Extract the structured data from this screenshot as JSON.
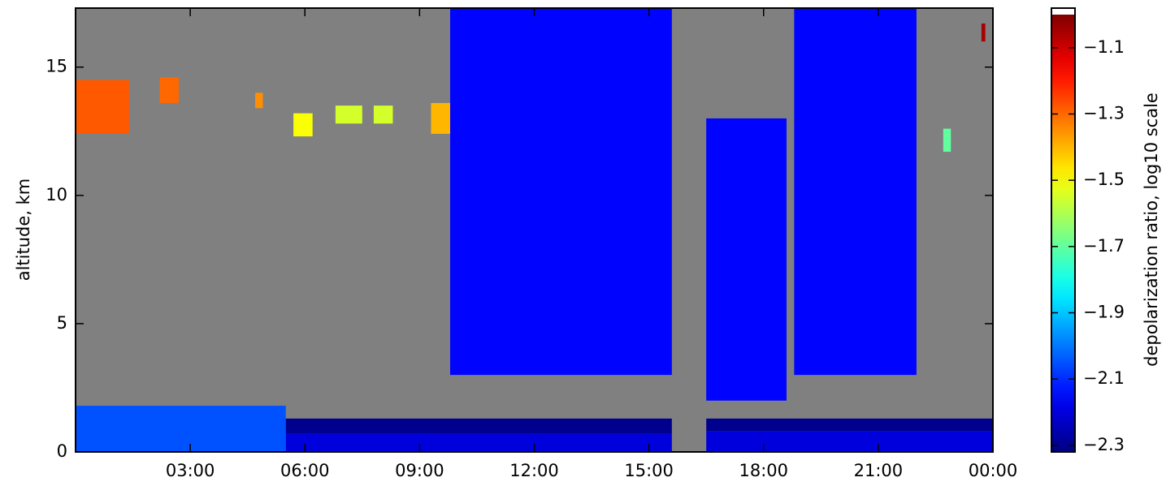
{
  "chart_data": {
    "type": "heatmap",
    "ylabel": "altitude, km",
    "colorbar_label": "depolarization ratio, log10 scale",
    "xlim": [
      0,
      24
    ],
    "xticks": [
      {
        "value": 3,
        "label": "03:00"
      },
      {
        "value": 6,
        "label": "06:00"
      },
      {
        "value": 9,
        "label": "09:00"
      },
      {
        "value": 12,
        "label": "12:00"
      },
      {
        "value": 15,
        "label": "15:00"
      },
      {
        "value": 18,
        "label": "18:00"
      },
      {
        "value": 21,
        "label": "21:00"
      },
      {
        "value": 24,
        "label": "00:00"
      }
    ],
    "ylim": [
      0,
      17.3
    ],
    "yticks": [
      0,
      5,
      10,
      15
    ],
    "clim": [
      -2.32,
      -1.0
    ],
    "cticks": [
      {
        "value": -1.1,
        "label": "−1.1"
      },
      {
        "value": -1.3,
        "label": "−1.3"
      },
      {
        "value": -1.5,
        "label": "−1.5"
      },
      {
        "value": -1.7,
        "label": "−1.7"
      },
      {
        "value": -1.9,
        "label": "−1.9"
      },
      {
        "value": -2.1,
        "label": "−2.1"
      },
      {
        "value": -2.3,
        "label": "−2.3"
      }
    ],
    "colormap": "jet",
    "background": "#808080",
    "cells": [
      {
        "x0": 0,
        "x1": 1.4,
        "y0": 12.4,
        "y1": 14.5,
        "value": -1.28
      },
      {
        "x0": 2.2,
        "x1": 2.7,
        "y0": 13.6,
        "y1": 14.6,
        "value": -1.3
      },
      {
        "x0": 4.7,
        "x1": 4.9,
        "y0": 13.4,
        "y1": 14.0,
        "value": -1.35
      },
      {
        "x0": 5.7,
        "x1": 6.2,
        "y0": 12.3,
        "y1": 13.2,
        "value": -1.5
      },
      {
        "x0": 6.8,
        "x1": 7.5,
        "y0": 12.8,
        "y1": 13.5,
        "value": -1.55
      },
      {
        "x0": 7.8,
        "x1": 8.3,
        "y0": 12.8,
        "y1": 13.5,
        "value": -1.55
      },
      {
        "x0": 9.3,
        "x1": 9.8,
        "y0": 12.4,
        "y1": 13.6,
        "value": -1.4
      },
      {
        "x0": 9.8,
        "x1": 15.6,
        "y0": 3.0,
        "y1": 17.3,
        "value": -2.15
      },
      {
        "x0": 16.5,
        "x1": 18.6,
        "y0": 2.0,
        "y1": 13.0,
        "value": -2.15
      },
      {
        "x0": 18.8,
        "x1": 22.0,
        "y0": 3.0,
        "y1": 17.3,
        "value": -2.15
      },
      {
        "x0": 0,
        "x1": 5.5,
        "y0": 0,
        "y1": 1.8,
        "value": -2.05
      },
      {
        "x0": 5.5,
        "x1": 15.6,
        "y0": 0.7,
        "y1": 1.3,
        "value": -2.3
      },
      {
        "x0": 16.5,
        "x1": 24,
        "y0": 0.8,
        "y1": 1.3,
        "value": -2.3
      },
      {
        "x0": 5.5,
        "x1": 15.6,
        "y0": 0,
        "y1": 0.7,
        "value": -2.2
      },
      {
        "x0": 16.5,
        "x1": 24,
        "y0": 0,
        "y1": 0.8,
        "value": -2.2
      },
      {
        "x0": 22.7,
        "x1": 22.9,
        "y0": 11.7,
        "y1": 12.6,
        "value": -1.7
      },
      {
        "x0": 23.7,
        "x1": 23.8,
        "y0": 16.0,
        "y1": 16.7,
        "value": -1.05
      }
    ]
  }
}
